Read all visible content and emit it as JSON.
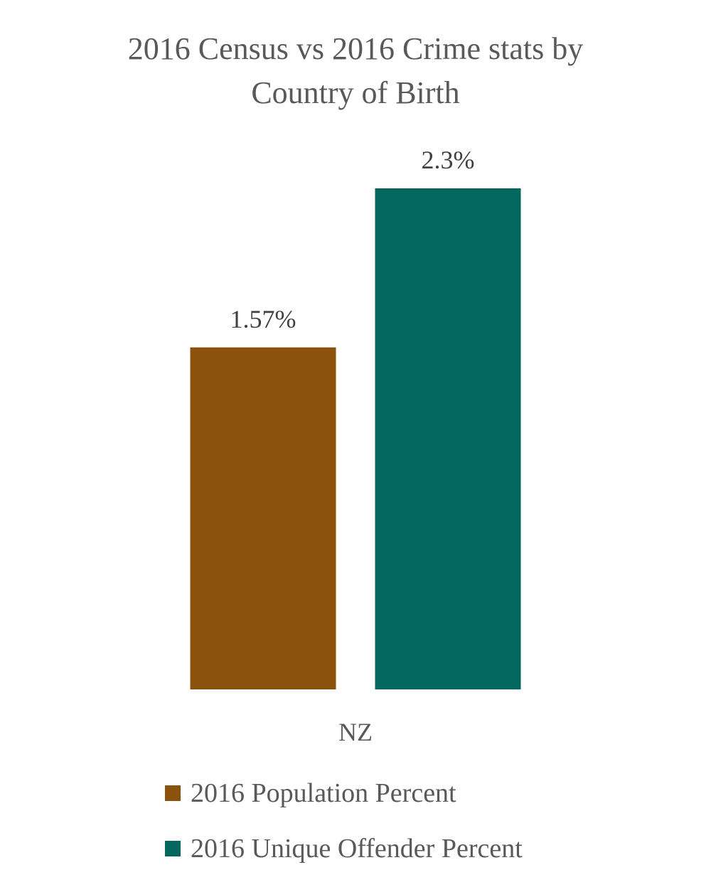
{
  "chart_data": {
    "type": "bar",
    "title_lines": [
      "2016 Census vs 2016 Crime stats by",
      "Country of Birth"
    ],
    "categories": [
      "NZ"
    ],
    "series": [
      {
        "name": "2016 Population Percent",
        "values": [
          1.57
        ],
        "labels": [
          "1.57%"
        ],
        "color": "#8B520E"
      },
      {
        "name": "2016 Unique Offender Percent",
        "values": [
          2.3
        ],
        "labels": [
          "2.3%"
        ],
        "color": "#03665F"
      }
    ],
    "ylim": [
      0,
      2.3
    ],
    "grid": false,
    "legend_position": "bottom"
  }
}
